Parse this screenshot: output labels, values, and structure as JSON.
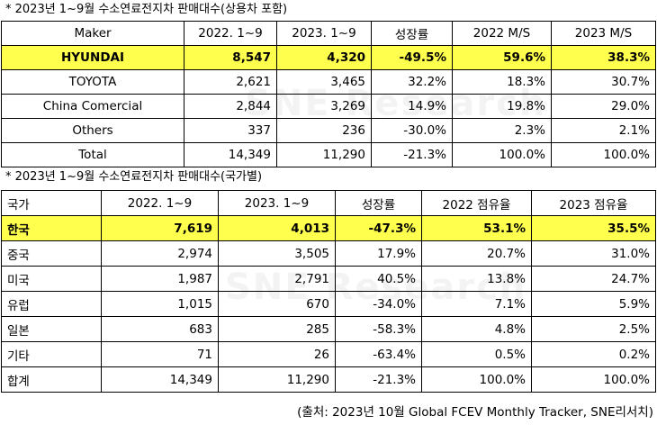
{
  "table1": {
    "caption": "* 2023년 1~9월 수소연료전지차 판매대수(상용차 포함)",
    "headers": [
      "Maker",
      "2022. 1~9",
      "2023. 1~9",
      "성장률",
      "2022 M/S",
      "2023 M/S"
    ],
    "rows": [
      [
        "HYUNDAI",
        "8,547",
        "4,320",
        "-49.5%",
        "59.6%",
        "38.3%"
      ],
      [
        "TOYOTA",
        "2,621",
        "3,465",
        "32.2%",
        "18.3%",
        "30.7%"
      ],
      [
        "China Comercial",
        "2,844",
        "3,269",
        "14.9%",
        "19.8%",
        "29.0%"
      ],
      [
        "Others",
        "337",
        "236",
        "-30.0%",
        "2.3%",
        "2.1%"
      ],
      [
        "Total",
        "14,349",
        "11,290",
        "-21.3%",
        "100.0%",
        "100.0%"
      ]
    ]
  },
  "table2": {
    "caption": "* 2023년 1~9월 수소연료전지차 판매대수(국가별)",
    "headers": [
      "국가",
      "2022. 1~9",
      "2023. 1~9",
      "성장률",
      "2022 점유율",
      "2023 점유율"
    ],
    "rows": [
      [
        "한국",
        "7,619",
        "4,013",
        "-47.3%",
        "53.1%",
        "35.5%"
      ],
      [
        "중국",
        "2,974",
        "3,505",
        "17.9%",
        "20.7%",
        "31.0%"
      ],
      [
        "미국",
        "1,987",
        "2,791",
        "40.5%",
        "13.8%",
        "24.7%"
      ],
      [
        "유럽",
        "1,015",
        "670",
        "-34.0%",
        "7.1%",
        "5.9%"
      ],
      [
        "일본",
        "683",
        "285",
        "-58.3%",
        "4.8%",
        "2.5%"
      ],
      [
        "기타",
        "71",
        "26",
        "-63.4%",
        "0.5%",
        "0.2%"
      ],
      [
        "합계",
        "14,349",
        "11,290",
        "-21.3%",
        "100.0%",
        "100.0%"
      ]
    ]
  },
  "watermark": "SNE Research",
  "source": "(출처: 2023년 10월 Global FCEV Monthly Tracker, SNE리서치)",
  "colors": {
    "highlight": "#ffff4d",
    "border": "#000000"
  }
}
